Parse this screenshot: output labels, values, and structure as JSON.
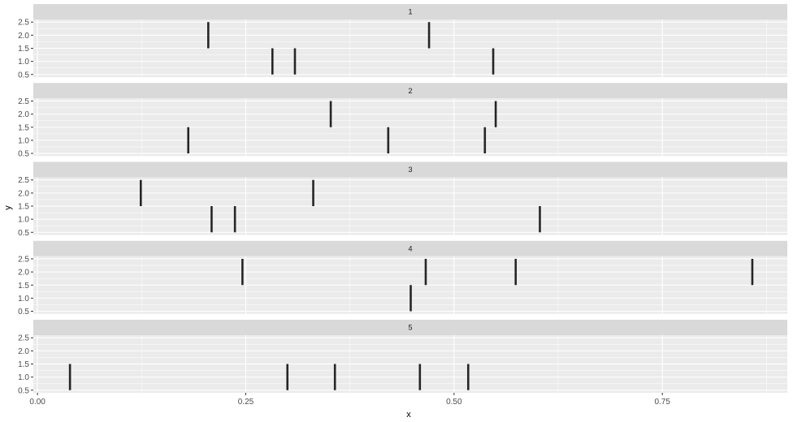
{
  "chart_data": {
    "type": "segment-facet",
    "xlabel": "x",
    "ylabel": "y",
    "xlim": [
      -0.005,
      0.9
    ],
    "ylim": [
      0.4,
      2.6
    ],
    "x_ticks": [
      0.0,
      0.25,
      0.5,
      0.75
    ],
    "x_tick_labels": [
      "0.00",
      "0.25",
      "0.50",
      "0.75"
    ],
    "y_ticks": [
      0.5,
      1.0,
      1.5,
      2.0,
      2.5
    ],
    "y_tick_labels": [
      "0.5",
      "1.0",
      "1.5",
      "2.0",
      "2.5"
    ],
    "grid": true,
    "facets": [
      {
        "label": "1",
        "segments": [
          {
            "x": 0.205,
            "y_start": 1.5,
            "y_end": 2.5
          },
          {
            "x": 0.47,
            "y_start": 1.5,
            "y_end": 2.5
          },
          {
            "x": 0.282,
            "y_start": 0.5,
            "y_end": 1.5
          },
          {
            "x": 0.309,
            "y_start": 0.5,
            "y_end": 1.5
          },
          {
            "x": 0.547,
            "y_start": 0.5,
            "y_end": 1.5
          }
        ]
      },
      {
        "label": "2",
        "segments": [
          {
            "x": 0.352,
            "y_start": 1.5,
            "y_end": 2.5
          },
          {
            "x": 0.55,
            "y_start": 1.5,
            "y_end": 2.5
          },
          {
            "x": 0.181,
            "y_start": 0.5,
            "y_end": 1.5
          },
          {
            "x": 0.421,
            "y_start": 0.5,
            "y_end": 1.5
          },
          {
            "x": 0.537,
            "y_start": 0.5,
            "y_end": 1.5
          }
        ]
      },
      {
        "label": "3",
        "segments": [
          {
            "x": 0.124,
            "y_start": 1.5,
            "y_end": 2.5
          },
          {
            "x": 0.331,
            "y_start": 1.5,
            "y_end": 2.5
          },
          {
            "x": 0.209,
            "y_start": 0.5,
            "y_end": 1.5
          },
          {
            "x": 0.237,
            "y_start": 0.5,
            "y_end": 1.5
          },
          {
            "x": 0.603,
            "y_start": 0.5,
            "y_end": 1.5
          }
        ]
      },
      {
        "label": "4",
        "segments": [
          {
            "x": 0.246,
            "y_start": 1.5,
            "y_end": 2.5
          },
          {
            "x": 0.466,
            "y_start": 1.5,
            "y_end": 2.5
          },
          {
            "x": 0.574,
            "y_start": 1.5,
            "y_end": 2.5
          },
          {
            "x": 0.858,
            "y_start": 1.5,
            "y_end": 2.5
          },
          {
            "x": 0.448,
            "y_start": 0.5,
            "y_end": 1.5
          }
        ]
      },
      {
        "label": "5",
        "segments": [
          {
            "x": 0.039,
            "y_start": 0.5,
            "y_end": 1.5
          },
          {
            "x": 0.3,
            "y_start": 0.5,
            "y_end": 1.5
          },
          {
            "x": 0.357,
            "y_start": 0.5,
            "y_end": 1.5
          },
          {
            "x": 0.459,
            "y_start": 0.5,
            "y_end": 1.5
          },
          {
            "x": 0.517,
            "y_start": 0.5,
            "y_end": 1.5
          }
        ]
      }
    ],
    "colors": {
      "strip_background": "#d9d9d9",
      "panel_background": "#ebebeb",
      "grid_major": "#ffffff",
      "segment": "#262626"
    }
  }
}
